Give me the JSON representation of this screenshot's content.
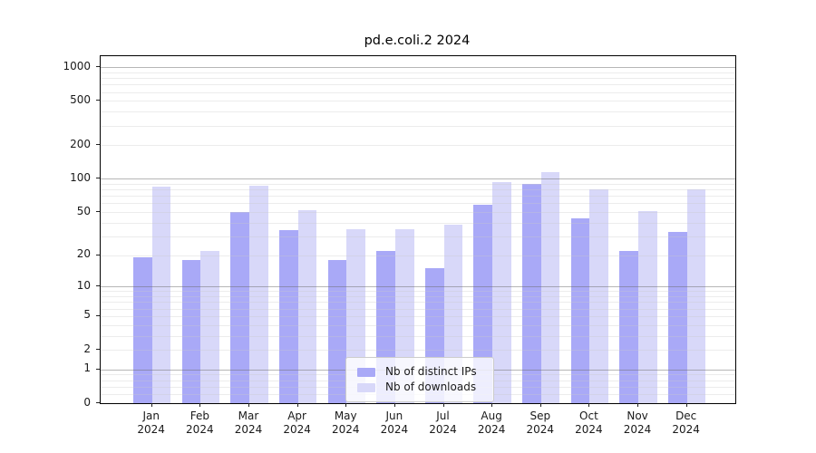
{
  "chart_data": {
    "type": "bar",
    "title": "pd.e.coli.2 2024",
    "categories": [
      "Jan",
      "Feb",
      "Mar",
      "Apr",
      "May",
      "Jun",
      "Jul",
      "Aug",
      "Sep",
      "Oct",
      "Nov",
      "Dec"
    ],
    "x_tick_second_line": "2024",
    "series": [
      {
        "name": "Nb of distinct IPs",
        "slug": "distinct-ips",
        "color": "#a9a9f7",
        "values": [
          19,
          18,
          50,
          34,
          18,
          22,
          15,
          58,
          90,
          44,
          22,
          33
        ]
      },
      {
        "name": "Nb of downloads",
        "slug": "downloads",
        "color": "#d8d8f9",
        "values": [
          85,
          22,
          87,
          52,
          35,
          35,
          38,
          94,
          115,
          80,
          51,
          80
        ]
      }
    ],
    "yscale": "log10(value+1)",
    "ylim": [
      0,
      1259
    ],
    "y_ticks": [
      {
        "label": "1000",
        "value": 1000
      },
      {
        "label": "500",
        "value": 500
      },
      {
        "label": "200",
        "value": 200
      },
      {
        "label": "100",
        "value": 100
      },
      {
        "label": "50",
        "value": 50
      },
      {
        "label": "20",
        "value": 20
      },
      {
        "label": "10",
        "value": 10
      },
      {
        "label": "5",
        "value": 5
      },
      {
        "label": "2",
        "value": 2
      },
      {
        "label": "1",
        "value": 1
      },
      {
        "label": "0",
        "value": 0
      }
    ],
    "major_grid_values": [
      1,
      10,
      100,
      1000
    ],
    "minor_grid_values": [
      0.2,
      0.4,
      0.6,
      0.8,
      2,
      3,
      4,
      5,
      6,
      7,
      8,
      9,
      20,
      30,
      40,
      50,
      60,
      70,
      80,
      90,
      200,
      300,
      400,
      500,
      600,
      700,
      800,
      900
    ],
    "grid": true,
    "legend_position": "lower center"
  },
  "colors": {
    "background": "#ffffff",
    "spine": "#000000",
    "text": "#1a1a1a",
    "major_grid": "rgba(110,110,110,0.50)",
    "minor_grid": "rgba(200,200,200,0.35)",
    "legend_border": "#cccccc",
    "legend_bg": "rgba(255,255,255,0.8)"
  }
}
